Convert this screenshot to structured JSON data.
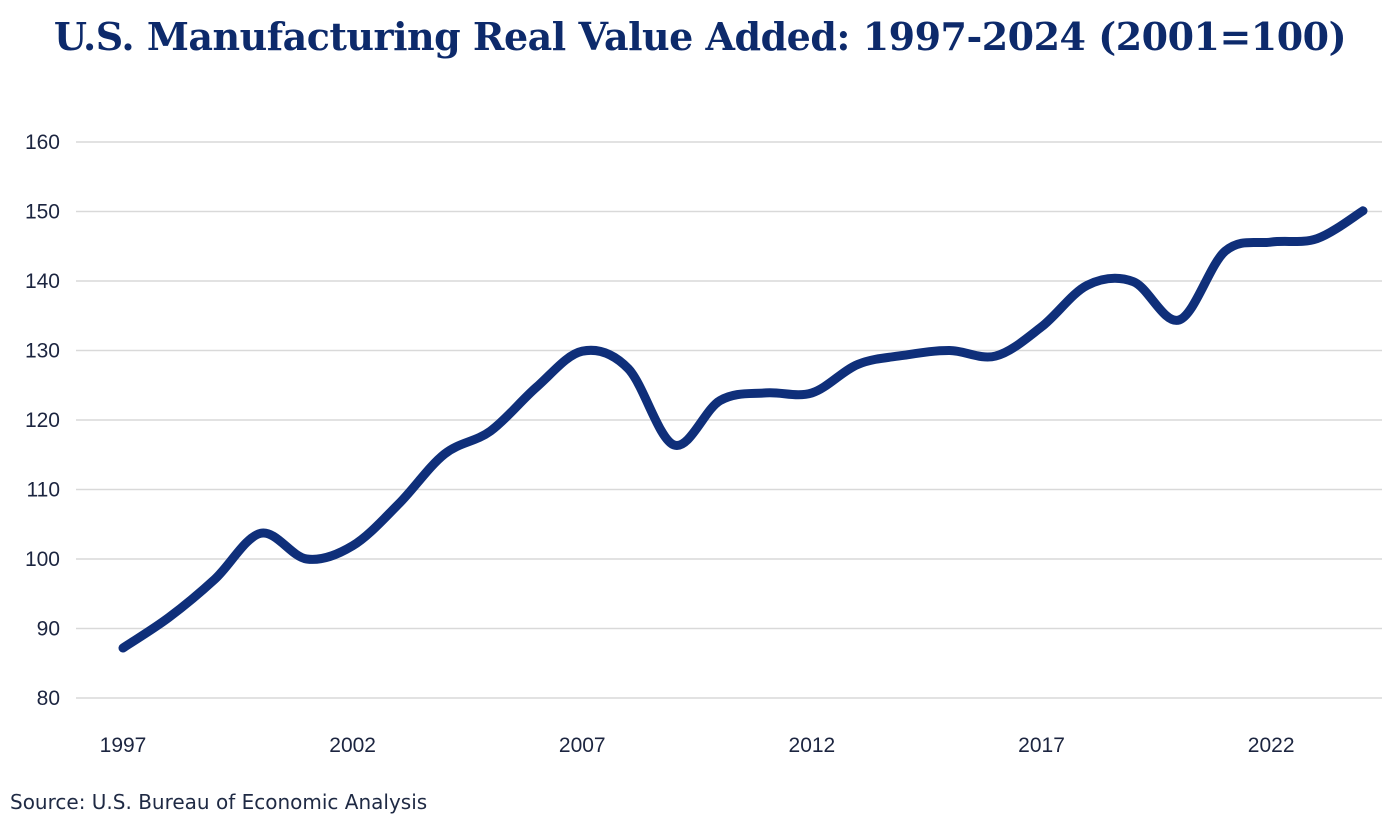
{
  "chart_data": {
    "type": "line",
    "title": "U.S. Manufacturing Real Value Added: 1997-2024 (2001=100)",
    "source": "Source: U.S. Bureau of Economic Analysis",
    "xlabel": "",
    "ylabel": "",
    "xlim": [
      1997,
      2024
    ],
    "ylim": [
      80,
      160
    ],
    "y_ticks": [
      80,
      90,
      100,
      110,
      120,
      130,
      140,
      150,
      160
    ],
    "x_ticks": [
      1997,
      2002,
      2007,
      2012,
      2017,
      2022
    ],
    "grid": true,
    "line_color": "#0f2f7a",
    "series": [
      {
        "x": [
          1997,
          1998,
          1999,
          2000,
          2001,
          2002,
          2003,
          2004,
          2005,
          2006,
          2007,
          2008,
          2009,
          2010,
          2011,
          2012,
          2013,
          2014,
          2015,
          2016,
          2017,
          2018,
          2019,
          2020,
          2021,
          2022,
          2023,
          2024
        ],
        "values": [
          87.2,
          91.6,
          97.1,
          103.7,
          100.0,
          101.9,
          107.9,
          115.1,
          118.4,
          124.7,
          129.9,
          127.4,
          116.4,
          122.8,
          123.9,
          123.9,
          128.0,
          129.3,
          130.0,
          129.2,
          133.4,
          139.4,
          139.9,
          134.4,
          144.3,
          145.6,
          146.1,
          150.1
        ]
      }
    ]
  }
}
